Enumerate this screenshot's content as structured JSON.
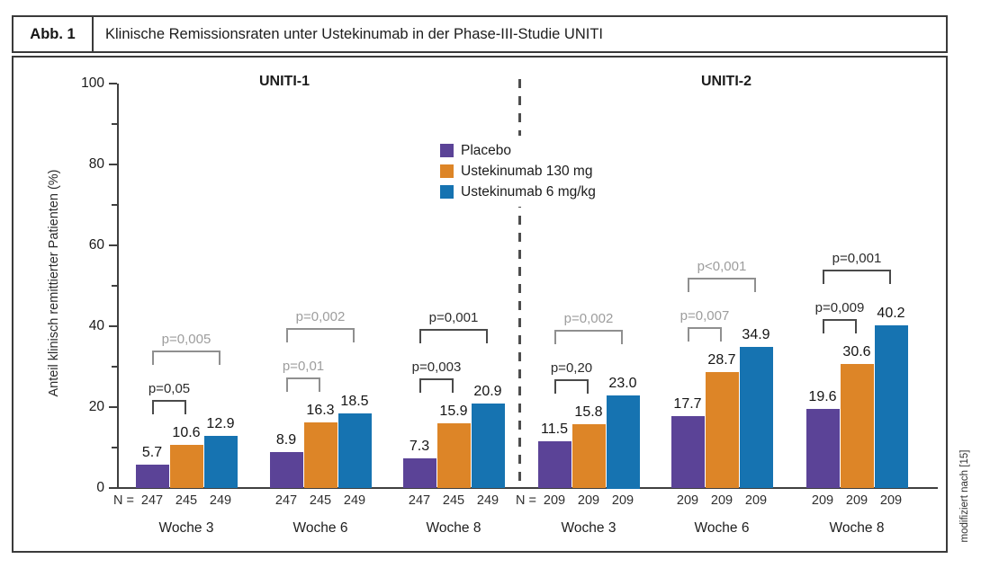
{
  "figure": {
    "label": "Abb. 1",
    "title": "Klinische Remissionsraten unter Ustekinumab in der Phase-III-Studie UNITI",
    "credit": "modifiziert nach [15]"
  },
  "chart_data": {
    "type": "bar",
    "ylabel": "Anteil klinisch remittierter Patienten (%)",
    "ylim": [
      0,
      100
    ],
    "yticks_labeled": [
      0,
      20,
      40,
      60,
      80,
      100
    ],
    "yticks_minor": [
      10,
      30,
      50,
      70,
      90
    ],
    "grid": false,
    "legend_position": "upper-center",
    "series": [
      {
        "name": "Placebo",
        "color": "#5b4397"
      },
      {
        "name": "Ustekinumab 130 mg",
        "color": "#dd8527"
      },
      {
        "name": "Ustekinumab 6 mg/kg",
        "color": "#1673b1"
      }
    ],
    "panels": [
      {
        "name": "UNITI-1",
        "n_prefix": "N =",
        "groups": [
          {
            "label": "Woche 3",
            "n": [
              "247",
              "245",
              "249"
            ],
            "values": [
              5.7,
              10.6,
              12.9
            ],
            "p_inner": {
              "text": "p=0,05",
              "tone": "dark"
            },
            "p_outer": {
              "text": "p=0,005",
              "tone": "gray"
            }
          },
          {
            "label": "Woche 6",
            "n": [
              "247",
              "245",
              "249"
            ],
            "values": [
              8.9,
              16.3,
              18.5
            ],
            "p_inner": {
              "text": "p=0,01",
              "tone": "gray"
            },
            "p_outer": {
              "text": "p=0,002",
              "tone": "gray"
            }
          },
          {
            "label": "Woche 8",
            "n": [
              "247",
              "245",
              "249"
            ],
            "values": [
              7.3,
              15.9,
              20.9
            ],
            "p_inner": {
              "text": "p=0,003",
              "tone": "dark"
            },
            "p_outer": {
              "text": "p=0,001",
              "tone": "dark"
            }
          }
        ]
      },
      {
        "name": "UNITI-2",
        "n_prefix": "N =",
        "groups": [
          {
            "label": "Woche 3",
            "n": [
              "209",
              "209",
              "209"
            ],
            "values": [
              11.5,
              15.8,
              23.0
            ],
            "p_inner": {
              "text": "p=0,20",
              "tone": "dark"
            },
            "p_outer": {
              "text": "p=0,002",
              "tone": "gray"
            }
          },
          {
            "label": "Woche 6",
            "n": [
              "209",
              "209",
              "209"
            ],
            "values": [
              17.7,
              28.7,
              34.9
            ],
            "p_inner": {
              "text": "p=0,007",
              "tone": "gray"
            },
            "p_outer": {
              "text": "p<0,001",
              "tone": "gray"
            }
          },
          {
            "label": "Woche 8",
            "n": [
              "209",
              "209",
              "209"
            ],
            "values": [
              19.6,
              30.6,
              40.2
            ],
            "p_inner": {
              "text": "p=0,009",
              "tone": "dark"
            },
            "p_outer": {
              "text": "p=0,001",
              "tone": "dark"
            }
          }
        ]
      }
    ]
  }
}
